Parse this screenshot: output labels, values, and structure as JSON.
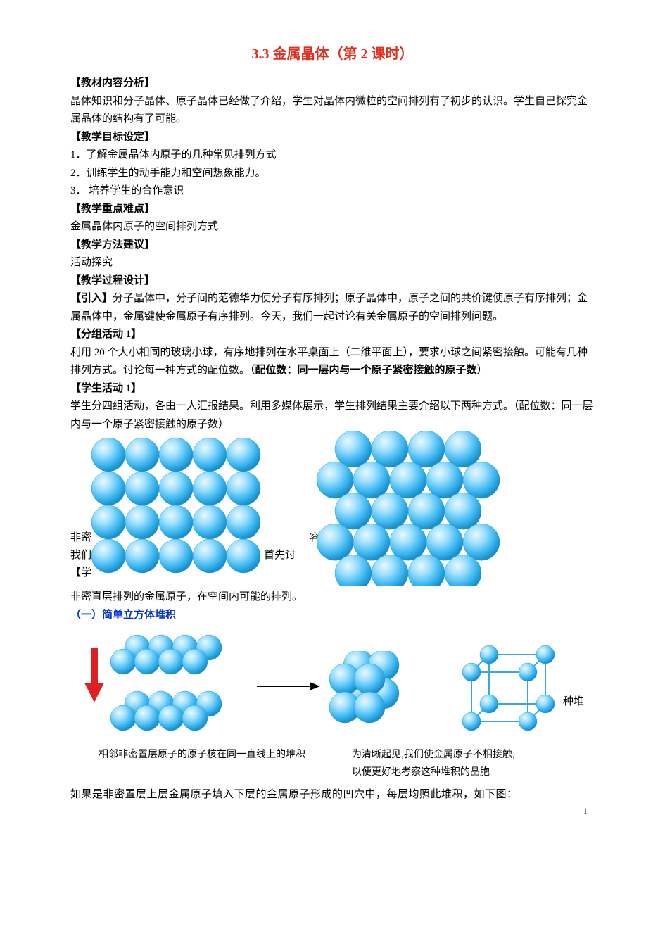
{
  "title": "3.3 金属晶体（第 2 课时）",
  "h_material": "【教材内容分析】",
  "p_material": "晶体知识和分子晶体、原子晶体已经做了介绍，学生对晶体内微粒的空间排列有了初步的认识。学生自己探究金属晶体的结构有了可能。",
  "h_goals": "【教学目标设定】",
  "goal1": "1．了解金属晶体内原子的几种常见排列方式",
  "goal2": "2．训练学生的动手能力和空间想象能力。",
  "goal3": "3． 培养学生的合作意识",
  "h_focus": "【教学重点难点】",
  "p_focus": "金属晶体内原子的空间排列方式",
  "h_method": "【教学方法建议】",
  "p_method": " 活动探究",
  "h_process": "【教学过程设计】",
  "intro_label": "【引入】",
  "intro_text": "分子晶体中，分子间的范德华力使分子有序排列；原子晶体中，原子之间的共价键使原子有序排列；金属晶体中，金属键使金属原子有序排列。今天，我们一起讨论有关金属原子的空间排列问题。",
  "h_act1": "【分组活动 1】",
  "act1_a": "利用 20 个大小相同的玻璃小球，有序地排列在水平桌面上（二维平面上），要求小球之间紧密接触。可能有几种排列方式。讨论每一种方式的配位数。（",
  "act1_bold": "配位数：同一层内与一个原子紧密接触的原子数",
  "act1_b": "）",
  "h_stu1": "【学生活动 1】",
  "stu1_a": "学生分四组活动，各由一人汇报结果。利用多媒体展示，学生排列结果主要介绍以下两种方式。（配位数：同一层内与一个原子紧密接触的原子数）",
  "behind1": "非密",
  "behind2": "容",
  "behind3": "我们",
  "behind4": "的排列。首先讨",
  "behind5": "【学",
  "row_after": "非密直层排列的金属原子，在空间内可能的排列。",
  "row_after2": "",
  "row_tail": "",
  "hidden_frag": "",
  "subsec": "（一）简单立方体堆积",
  "caption_left": "相邻非密置层原子的原子核在同一直线上的堆积",
  "caption_right1": "为清晰起见,我们使金属原子不相接触,",
  "caption_right2": "以便更好地考察这种堆积的晶胞",
  "stack_char": "种堆",
  "bottom_frag": "如果是非密置层上层金属原子填入下层的金属原子形成的凹穴中，每层均照此堆积，如下图：",
  "page_num": "1",
  "svg": {
    "sphere_light": "#cceeff",
    "sphere_mid": "#66ccff",
    "sphere_dark": "#0099dd",
    "sphere_stroke": "#2aa0d8",
    "arrow_fill": "#e02020",
    "cube_stroke": "#3aa8e0"
  }
}
